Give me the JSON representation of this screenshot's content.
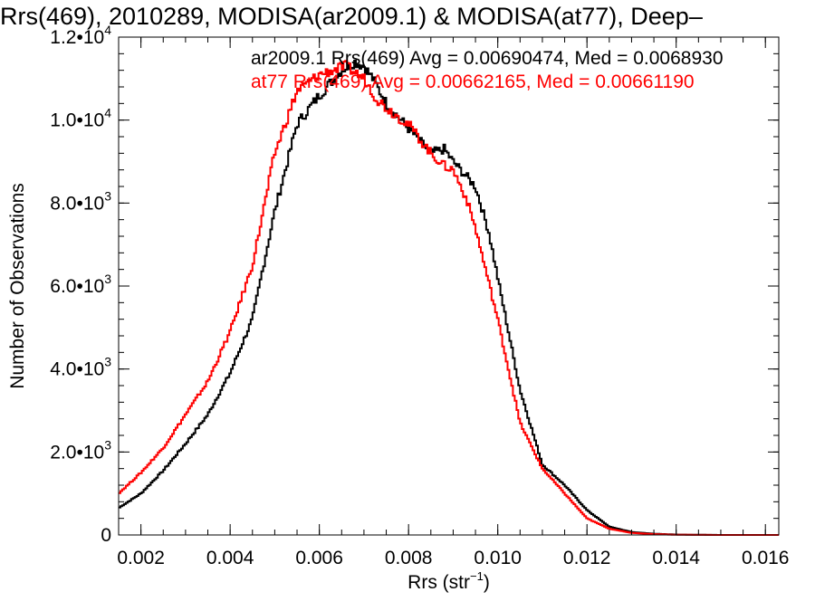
{
  "title": "Rrs(469), 2010289, MODISA(ar2009.1) & MODISA(at77), Deep–",
  "chart_data": {
    "type": "histogram",
    "xlabel": "Rrs (str",
    "xlabel_sup": "−1",
    "xlabel_end": ")",
    "ylabel": "Number of Observations",
    "xlim": [
      0.0015,
      0.0163
    ],
    "ylim": [
      0,
      12000
    ],
    "x_ticks": [
      0.002,
      0.004,
      0.006,
      0.008,
      0.01,
      0.012,
      0.014,
      0.016
    ],
    "x_tick_labels": [
      "0.002",
      "0.004",
      "0.006",
      "0.008",
      "0.010",
      "0.012",
      "0.014",
      "0.016"
    ],
    "y_ticks": [
      0,
      2000,
      4000,
      6000,
      8000,
      10000,
      12000
    ],
    "y_tick_labels": [
      {
        "base": "0",
        "exp": ""
      },
      {
        "base": "2.0•10",
        "exp": "3"
      },
      {
        "base": "4.0•10",
        "exp": "3"
      },
      {
        "base": "6.0•10",
        "exp": "3"
      },
      {
        "base": "8.0•10",
        "exp": "3"
      },
      {
        "base": "1.0•10",
        "exp": "4"
      },
      {
        "base": "1.2•10",
        "exp": "4"
      }
    ],
    "series": [
      {
        "name": "ar2009.1",
        "color": "#000000",
        "legend": "ar2009.1 Rrs(469) Avg = 0.00690474, Med = 0.0068930",
        "x": [
          0.0015,
          0.002,
          0.0025,
          0.003,
          0.0035,
          0.004,
          0.0045,
          0.005,
          0.0055,
          0.006,
          0.0065,
          0.0068,
          0.007,
          0.0072,
          0.0075,
          0.008,
          0.0085,
          0.0088,
          0.009,
          0.0095,
          0.0098,
          0.01,
          0.0105,
          0.011,
          0.0115,
          0.012,
          0.0125,
          0.013,
          0.0135,
          0.014,
          0.015,
          0.0163
        ],
        "y": [
          650,
          1000,
          1550,
          2200,
          2900,
          3900,
          5200,
          7800,
          9900,
          10600,
          11200,
          11400,
          11300,
          11000,
          10400,
          9800,
          9200,
          9300,
          9000,
          8400,
          7300,
          6200,
          3500,
          1700,
          1200,
          600,
          200,
          70,
          30,
          10,
          0,
          0
        ]
      },
      {
        "name": "at77",
        "color": "#ff0000",
        "legend": "at77 Rrs(469) Avg = 0.00662165, Med = 0.00661190",
        "x": [
          0.0015,
          0.002,
          0.0025,
          0.003,
          0.0035,
          0.004,
          0.0045,
          0.005,
          0.0055,
          0.006,
          0.0063,
          0.0066,
          0.007,
          0.0073,
          0.0075,
          0.008,
          0.0085,
          0.0088,
          0.009,
          0.0093,
          0.0095,
          0.01,
          0.0105,
          0.011,
          0.0115,
          0.012,
          0.0125,
          0.013,
          0.0135,
          0.014,
          0.015,
          0.0163
        ],
        "y": [
          1000,
          1500,
          2100,
          2900,
          3700,
          4900,
          6500,
          9200,
          10700,
          11100,
          11200,
          11300,
          11000,
          10500,
          10300,
          9900,
          9200,
          8900,
          8800,
          8100,
          7400,
          5200,
          2700,
          1600,
          1000,
          400,
          150,
          50,
          20,
          5,
          0,
          0
        ]
      }
    ]
  }
}
